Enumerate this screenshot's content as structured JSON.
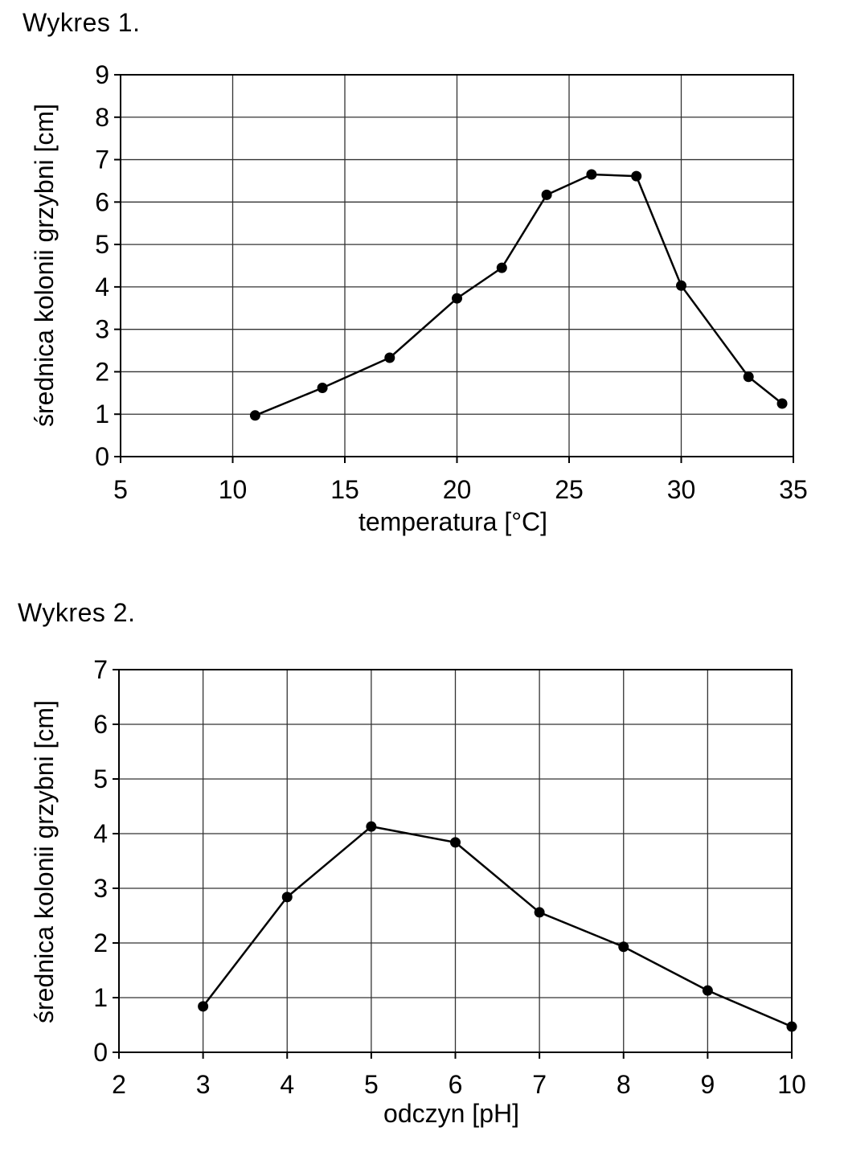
{
  "chart_data": [
    {
      "type": "line",
      "title": "Wykres 1.",
      "xlabel": "temperatura [°C]",
      "ylabel": "średnica kolonii grzybni [cm]",
      "xlim": [
        5,
        35
      ],
      "ylim": [
        0,
        9
      ],
      "xticks": [
        "5",
        "10",
        "15",
        "20",
        "25",
        "30",
        "35"
      ],
      "yticks": [
        "0",
        "1",
        "2",
        "3",
        "4",
        "5",
        "6",
        "7",
        "8",
        "9"
      ],
      "grid": true,
      "series": [
        {
          "x": [
            11,
            14,
            17,
            20,
            22,
            24,
            26,
            28,
            30,
            33,
            34.5
          ],
          "y": [
            0.97,
            1.62,
            2.33,
            3.73,
            4.45,
            6.17,
            6.65,
            6.61,
            4.03,
            1.88,
            1.25
          ]
        }
      ]
    },
    {
      "type": "line",
      "title": "Wykres 2.",
      "xlabel": "odczyn [pH]",
      "ylabel": "średnica kolonii grzybni [cm]",
      "xlim": [
        2,
        10
      ],
      "ylim": [
        0,
        7
      ],
      "xticks": [
        "2",
        "3",
        "4",
        "5",
        "6",
        "7",
        "8",
        "9",
        "10"
      ],
      "yticks": [
        "0",
        "1",
        "2",
        "3",
        "4",
        "5",
        "6",
        "7"
      ],
      "grid": true,
      "series": [
        {
          "x": [
            3,
            4,
            5,
            6,
            7,
            8,
            9,
            10
          ],
          "y": [
            0.84,
            2.84,
            4.13,
            3.84,
            2.56,
            1.93,
            1.13,
            0.47
          ]
        }
      ]
    }
  ]
}
